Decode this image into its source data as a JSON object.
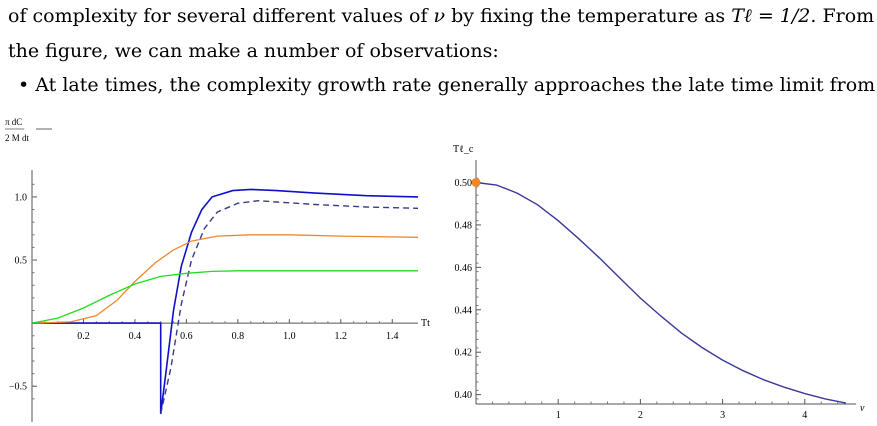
{
  "text": {
    "line1_a": "of complexity for several different values of ",
    "line1_nu": "ν",
    "line1_b": " by fixing the temperature as ",
    "line1_math": "Tℓ = 1/2",
    "line1_c": ". From",
    "line2": "the figure, we can make a number of observations:",
    "bullet_mark": "•",
    "bullet_text": "At late times, the complexity growth rate generally approaches the late time limit from"
  },
  "chart_data": [
    {
      "type": "line",
      "ylabel_top": "π  dC",
      "ylabel_bottom": "2 M  dt",
      "xlabel": "Tt",
      "xlim": [
        0,
        1.5
      ],
      "ylim": [
        -0.72,
        1.15
      ],
      "x_ticks": [
        "0.2",
        "0.4",
        "0.6",
        "0.8",
        "1.0",
        "1.2",
        "1.4"
      ],
      "y_ticks": [
        "−0.5",
        "0.5",
        "1.0"
      ],
      "colors": {
        "blue": "#1010c8",
        "dashed": "#3a3a8c",
        "orange": "#f0882a",
        "green": "#22dd22"
      },
      "series": [
        {
          "style": "solid-blue",
          "points": [
            [
              0,
              0
            ],
            [
              0.5,
              0
            ],
            [
              0.5,
              -0.72
            ],
            [
              0.52,
              -0.4
            ],
            [
              0.55,
              0.1
            ],
            [
              0.58,
              0.45
            ],
            [
              0.62,
              0.72
            ],
            [
              0.66,
              0.9
            ],
            [
              0.7,
              1.0
            ],
            [
              0.78,
              1.05
            ],
            [
              0.85,
              1.06
            ],
            [
              0.95,
              1.05
            ],
            [
              1.1,
              1.03
            ],
            [
              1.3,
              1.01
            ],
            [
              1.5,
              1.0
            ]
          ]
        },
        {
          "style": "dashed",
          "points": [
            [
              0.5,
              -0.72
            ],
            [
              0.54,
              -0.35
            ],
            [
              0.58,
              0.15
            ],
            [
              0.62,
              0.5
            ],
            [
              0.67,
              0.75
            ],
            [
              0.72,
              0.88
            ],
            [
              0.8,
              0.95
            ],
            [
              0.88,
              0.97
            ],
            [
              0.95,
              0.96
            ],
            [
              1.1,
              0.94
            ],
            [
              1.3,
              0.92
            ],
            [
              1.5,
              0.91
            ]
          ]
        },
        {
          "style": "orange",
          "points": [
            [
              0,
              0
            ],
            [
              0.15,
              0.01
            ],
            [
              0.25,
              0.06
            ],
            [
              0.33,
              0.18
            ],
            [
              0.4,
              0.33
            ],
            [
              0.48,
              0.48
            ],
            [
              0.55,
              0.58
            ],
            [
              0.62,
              0.65
            ],
            [
              0.72,
              0.69
            ],
            [
              0.85,
              0.7
            ],
            [
              1.0,
              0.7
            ],
            [
              1.2,
              0.69
            ],
            [
              1.5,
              0.68
            ]
          ]
        },
        {
          "style": "green",
          "points": [
            [
              0,
              0
            ],
            [
              0.1,
              0.04
            ],
            [
              0.2,
              0.12
            ],
            [
              0.3,
              0.22
            ],
            [
              0.4,
              0.31
            ],
            [
              0.5,
              0.37
            ],
            [
              0.6,
              0.395
            ],
            [
              0.7,
              0.41
            ],
            [
              0.8,
              0.415
            ],
            [
              1.0,
              0.415
            ],
            [
              1.5,
              0.415
            ]
          ]
        }
      ]
    },
    {
      "type": "line",
      "ylabel": "Tℓ_c",
      "xlabel": "ν",
      "xlim": [
        0,
        4.55
      ],
      "ylim": [
        0.397,
        0.504
      ],
      "x_ticks": [
        "1",
        "2",
        "3",
        "4"
      ],
      "y_ticks": [
        "0.40",
        "0.42",
        "0.44",
        "0.46",
        "0.48",
        "0.50"
      ],
      "colors": {
        "line": "#3a3a98",
        "marker": "#f0882a"
      },
      "marker_point": [
        0,
        0.5
      ],
      "series": [
        {
          "style": "line",
          "points": [
            [
              0,
              0.5
            ],
            [
              0.25,
              0.4988
            ],
            [
              0.5,
              0.495
            ],
            [
              0.75,
              0.4895
            ],
            [
              1.0,
              0.482
            ],
            [
              1.25,
              0.4735
            ],
            [
              1.5,
              0.4645
            ],
            [
              1.75,
              0.455
            ],
            [
              2.0,
              0.4455
            ],
            [
              2.25,
              0.437
            ],
            [
              2.5,
              0.429
            ],
            [
              2.75,
              0.4222
            ],
            [
              3.0,
              0.4163
            ],
            [
              3.25,
              0.4113
            ],
            [
              3.5,
              0.407
            ],
            [
              3.75,
              0.4035
            ],
            [
              4.0,
              0.4005
            ],
            [
              4.25,
              0.398
            ],
            [
              4.5,
              0.396
            ]
          ]
        }
      ]
    }
  ]
}
